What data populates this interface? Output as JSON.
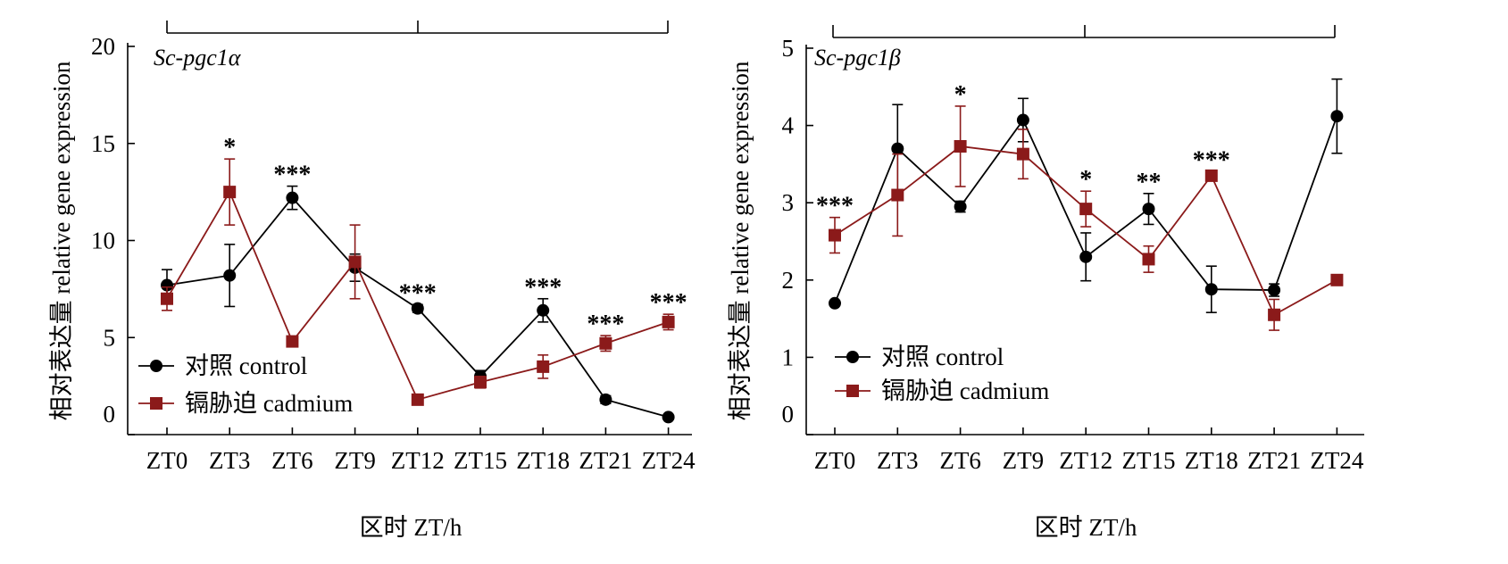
{
  "chart_data": [
    {
      "type": "line",
      "title": "Sc-pgc1α",
      "xlabel": "区时 ZT/h",
      "ylabel": "相对表达量 relative gene expression",
      "categories": [
        "ZT0",
        "ZT3",
        "ZT6",
        "ZT9",
        "ZT12",
        "ZT15",
        "ZT18",
        "ZT21",
        "ZT24"
      ],
      "ylim": [
        0,
        20
      ],
      "yticks": [
        "0",
        "5",
        "10",
        "15",
        "20"
      ],
      "series": [
        {
          "name": "对照 control",
          "color": "#000000",
          "marker": "circle",
          "values": [
            7.7,
            8.2,
            12.2,
            8.6,
            6.5,
            3.0,
            6.4,
            1.8,
            0.9
          ],
          "errors": [
            0.8,
            1.6,
            0.6,
            0.7,
            0.2,
            0.3,
            0.6,
            0.2,
            0.1
          ]
        },
        {
          "name": "镉胁迫 cadmium",
          "color": "#8b1a1a",
          "marker": "square",
          "values": [
            7.0,
            12.5,
            4.8,
            8.9,
            1.8,
            2.7,
            3.5,
            4.7,
            5.8
          ],
          "errors": [
            0.6,
            1.7,
            0.2,
            1.9,
            0.2,
            0.3,
            0.6,
            0.4,
            0.4
          ]
        }
      ],
      "annotations": [
        "",
        "*",
        "***",
        "",
        "***",
        "",
        "***",
        "***",
        "***"
      ],
      "legend_position": "bottom-left",
      "grid": false
    },
    {
      "type": "line",
      "title": "Sc-pgc1β",
      "xlabel": "区时 ZT/h",
      "ylabel": "相对表达量 relative gene expression",
      "categories": [
        "ZT0",
        "ZT3",
        "ZT6",
        "ZT9",
        "ZT12",
        "ZT15",
        "ZT18",
        "ZT21",
        "ZT24"
      ],
      "ylim": [
        0,
        5
      ],
      "yticks": [
        "0",
        "1",
        "2",
        "3",
        "4",
        "5"
      ],
      "series": [
        {
          "name": "对照 control",
          "color": "#000000",
          "marker": "circle",
          "values": [
            1.7,
            3.7,
            2.95,
            4.07,
            2.3,
            2.92,
            1.88,
            1.87,
            4.12
          ],
          "errors": [
            0.02,
            0.57,
            0.07,
            0.28,
            0.31,
            0.2,
            0.3,
            0.08,
            0.48
          ]
        },
        {
          "name": "镉胁迫 cadmium",
          "color": "#8b1a1a",
          "marker": "square",
          "values": [
            2.58,
            3.1,
            3.73,
            3.63,
            2.92,
            2.27,
            3.35,
            1.55,
            2.0
          ],
          "errors": [
            0.23,
            0.53,
            0.52,
            0.32,
            0.23,
            0.17,
            0.05,
            0.2,
            0.02
          ]
        }
      ],
      "annotations": [
        "***",
        "",
        "*",
        "",
        "*",
        "**",
        "***",
        "",
        ""
      ],
      "legend_position": "bottom-left",
      "grid": false
    }
  ]
}
